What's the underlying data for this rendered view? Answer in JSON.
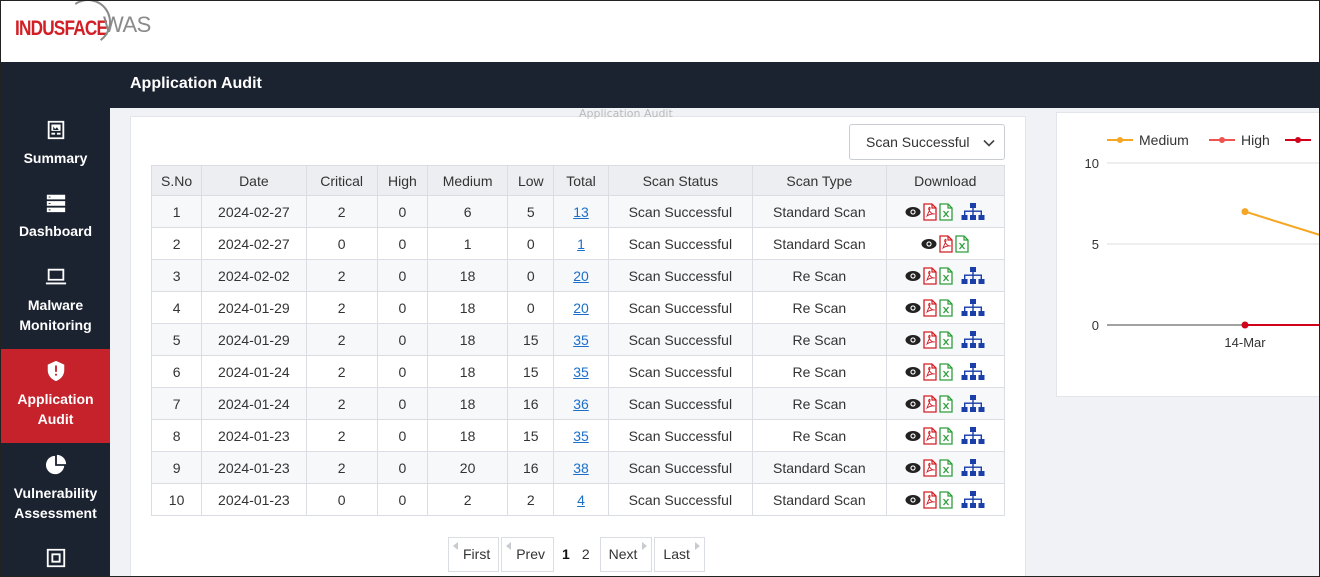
{
  "brand": {
    "part1": "INDUSFACE",
    "part2": "WAS"
  },
  "header": {
    "title": "Application Audit"
  },
  "sidebar": {
    "items": [
      {
        "label": "Summary",
        "icon": "summary-icon",
        "active": false
      },
      {
        "label": "Dashboard",
        "icon": "dashboard-icon",
        "active": false
      },
      {
        "label": "Malware Monitoring",
        "icon": "monitor-icon",
        "active": false
      },
      {
        "label": "Application Audit",
        "icon": "shield-icon",
        "active": true
      },
      {
        "label": "Vulnerability Assessment",
        "icon": "pie-icon",
        "active": false
      }
    ]
  },
  "panel": {
    "ghost_title": "Application Audit",
    "filter": {
      "selected": "Scan Successful"
    }
  },
  "table": {
    "columns": [
      "S.No",
      "Date",
      "Critical",
      "High",
      "Medium",
      "Low",
      "Total",
      "Scan Status",
      "Scan Type",
      "Download"
    ],
    "rows": [
      {
        "sno": "1",
        "date": "2024-02-27",
        "critical": "2",
        "high": "0",
        "medium": "6",
        "low": "5",
        "total": "13",
        "status": "Scan Successful",
        "type": "Standard Scan",
        "sitemap": true
      },
      {
        "sno": "2",
        "date": "2024-02-27",
        "critical": "0",
        "high": "0",
        "medium": "1",
        "low": "0",
        "total": "1",
        "status": "Scan Successful",
        "type": "Standard Scan",
        "sitemap": false
      },
      {
        "sno": "3",
        "date": "2024-02-02",
        "critical": "2",
        "high": "0",
        "medium": "18",
        "low": "0",
        "total": "20",
        "status": "Scan Successful",
        "type": "Re Scan",
        "sitemap": true
      },
      {
        "sno": "4",
        "date": "2024-01-29",
        "critical": "2",
        "high": "0",
        "medium": "18",
        "low": "0",
        "total": "20",
        "status": "Scan Successful",
        "type": "Re Scan",
        "sitemap": true
      },
      {
        "sno": "5",
        "date": "2024-01-29",
        "critical": "2",
        "high": "0",
        "medium": "18",
        "low": "15",
        "total": "35",
        "status": "Scan Successful",
        "type": "Re Scan",
        "sitemap": true
      },
      {
        "sno": "6",
        "date": "2024-01-24",
        "critical": "2",
        "high": "0",
        "medium": "18",
        "low": "15",
        "total": "35",
        "status": "Scan Successful",
        "type": "Re Scan",
        "sitemap": true
      },
      {
        "sno": "7",
        "date": "2024-01-24",
        "critical": "2",
        "high": "0",
        "medium": "18",
        "low": "16",
        "total": "36",
        "status": "Scan Successful",
        "type": "Re Scan",
        "sitemap": true
      },
      {
        "sno": "8",
        "date": "2024-01-23",
        "critical": "2",
        "high": "0",
        "medium": "18",
        "low": "15",
        "total": "35",
        "status": "Scan Successful",
        "type": "Re Scan",
        "sitemap": true
      },
      {
        "sno": "9",
        "date": "2024-01-23",
        "critical": "2",
        "high": "0",
        "medium": "20",
        "low": "16",
        "total": "38",
        "status": "Scan Successful",
        "type": "Standard Scan",
        "sitemap": true
      },
      {
        "sno": "10",
        "date": "2024-01-23",
        "critical": "0",
        "high": "0",
        "medium": "2",
        "low": "2",
        "total": "4",
        "status": "Scan Successful",
        "type": "Standard Scan",
        "sitemap": true
      }
    ]
  },
  "pagination": {
    "first": "First",
    "prev": "Prev",
    "pages": [
      "1",
      "2"
    ],
    "current": "1",
    "next": "Next",
    "last": "Last"
  },
  "colors": {
    "brand_red": "#d21f26",
    "sidebar_bg": "#1b2230",
    "active_bg": "#c5222b",
    "link": "#1a6fc9",
    "medium": "#f5a623",
    "high": "#ef5350",
    "critical": "#d0021b"
  },
  "chart_data": {
    "type": "line",
    "x": [
      "14-Mar"
    ],
    "series": [
      {
        "name": "Medium",
        "color": "#f5a623",
        "values": [
          7
        ]
      },
      {
        "name": "High",
        "color": "#ef5350",
        "values": [
          0
        ]
      },
      {
        "name": "",
        "color": "#d0021b",
        "values": [
          0
        ]
      }
    ],
    "yticks": [
      "10",
      "5",
      "0"
    ],
    "ylim": [
      0,
      10
    ],
    "legend": "top"
  }
}
